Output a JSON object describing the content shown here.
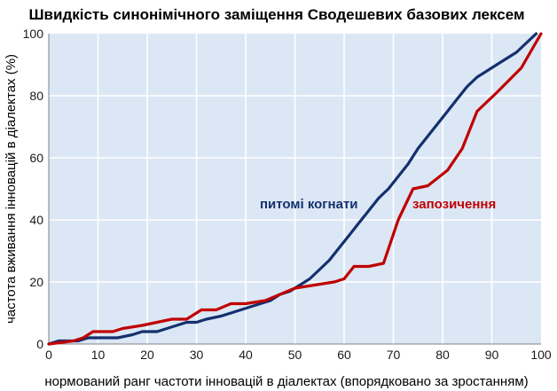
{
  "chart_data": {
    "type": "line",
    "title": "Швидкість синонімічного заміщення Сводешевих базових лексем",
    "xlabel": "нормований ранг частоти інновацій в діалектах (впорядковано за зростанням)",
    "ylabel": "частота вживання інновацій в діалектах (%)",
    "xlim": [
      0,
      100
    ],
    "ylim": [
      0,
      100
    ],
    "x_ticks": [
      "0",
      "10",
      "20",
      "30",
      "40",
      "50",
      "60",
      "70",
      "80",
      "90",
      "100"
    ],
    "y_ticks": [
      "0",
      "20",
      "40",
      "60",
      "80",
      "100"
    ],
    "grid": true,
    "plot_background": "#dbe7f5",
    "series": [
      {
        "name": "питомі когнати",
        "color": "#14306e",
        "points": [
          [
            0,
            0
          ],
          [
            2,
            1
          ],
          [
            6,
            1
          ],
          [
            8,
            2
          ],
          [
            14,
            2
          ],
          [
            17,
            3
          ],
          [
            19,
            4
          ],
          [
            22,
            4
          ],
          [
            24,
            5
          ],
          [
            26,
            6
          ],
          [
            28,
            7
          ],
          [
            30,
            7
          ],
          [
            32,
            8
          ],
          [
            35,
            9
          ],
          [
            37,
            10
          ],
          [
            39,
            11
          ],
          [
            41,
            12
          ],
          [
            43,
            13
          ],
          [
            45,
            14
          ],
          [
            47,
            16
          ],
          [
            49,
            17
          ],
          [
            51,
            19
          ],
          [
            53,
            21
          ],
          [
            55,
            24
          ],
          [
            57,
            27
          ],
          [
            59,
            31
          ],
          [
            61,
            35
          ],
          [
            63,
            39
          ],
          [
            65,
            43
          ],
          [
            67,
            47
          ],
          [
            69,
            50
          ],
          [
            71,
            54
          ],
          [
            73,
            58
          ],
          [
            75,
            63
          ],
          [
            77,
            67
          ],
          [
            79,
            71
          ],
          [
            81,
            75
          ],
          [
            83,
            79
          ],
          [
            85,
            83
          ],
          [
            87,
            86
          ],
          [
            89,
            88
          ],
          [
            91,
            90
          ],
          [
            93,
            92
          ],
          [
            95,
            94
          ],
          [
            97,
            97
          ],
          [
            99,
            100
          ]
        ]
      },
      {
        "name": "запозичення",
        "color": "#c00000",
        "points": [
          [
            0,
            0
          ],
          [
            5,
            1
          ],
          [
            7,
            2
          ],
          [
            9,
            4
          ],
          [
            13,
            4
          ],
          [
            15,
            5
          ],
          [
            19,
            6
          ],
          [
            22,
            7
          ],
          [
            25,
            8
          ],
          [
            28,
            8
          ],
          [
            31,
            11
          ],
          [
            34,
            11
          ],
          [
            37,
            13
          ],
          [
            40,
            13
          ],
          [
            44,
            14
          ],
          [
            47,
            16
          ],
          [
            50,
            18
          ],
          [
            54,
            19
          ],
          [
            58,
            20
          ],
          [
            60,
            21
          ],
          [
            62,
            25
          ],
          [
            65,
            25
          ],
          [
            68,
            26
          ],
          [
            71,
            40
          ],
          [
            74,
            50
          ],
          [
            77,
            51
          ],
          [
            81,
            56
          ],
          [
            84,
            63
          ],
          [
            87,
            75
          ],
          [
            91,
            81
          ],
          [
            96,
            89
          ],
          [
            100,
            100
          ]
        ]
      }
    ],
    "annotations": [
      {
        "text": "питомі когнати",
        "series": 0
      },
      {
        "text": "запозичення",
        "series": 1
      }
    ]
  }
}
